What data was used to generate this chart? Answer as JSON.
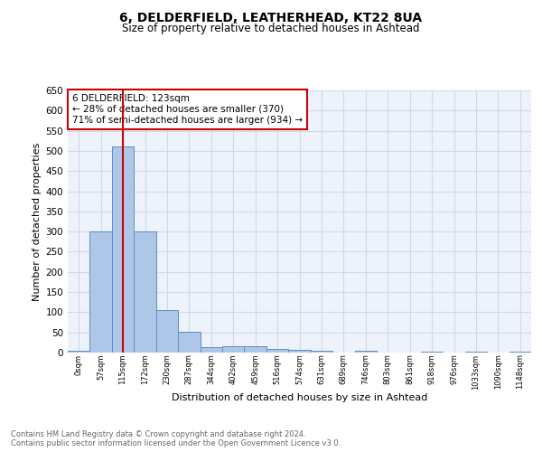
{
  "title1": "6, DELDERFIELD, LEATHERHEAD, KT22 8UA",
  "title2": "Size of property relative to detached houses in Ashtead",
  "xlabel": "Distribution of detached houses by size in Ashtead",
  "ylabel": "Number of detached properties",
  "bin_labels": [
    "0sqm",
    "57sqm",
    "115sqm",
    "172sqm",
    "230sqm",
    "287sqm",
    "344sqm",
    "402sqm",
    "459sqm",
    "516sqm",
    "574sqm",
    "631sqm",
    "689sqm",
    "746sqm",
    "803sqm",
    "861sqm",
    "918sqm",
    "976sqm",
    "1033sqm",
    "1090sqm",
    "1148sqm"
  ],
  "bar_heights": [
    5,
    300,
    510,
    300,
    105,
    52,
    13,
    15,
    15,
    10,
    7,
    5,
    0,
    5,
    0,
    0,
    3,
    0,
    3,
    0,
    3
  ],
  "bar_color": "#aec6e8",
  "bar_edge_color": "#5a8fc2",
  "grid_color": "#d0d8e8",
  "background_color": "#eef2fb",
  "vline_x": 2,
  "vline_color": "#cc0000",
  "annotation_text": "6 DELDERFIELD: 123sqm\n← 28% of detached houses are smaller (370)\n71% of semi-detached houses are larger (934) →",
  "annotation_box_color": "#ffffff",
  "annotation_box_edge": "#cc0000",
  "footer_text": "Contains HM Land Registry data © Crown copyright and database right 2024.\nContains public sector information licensed under the Open Government Licence v3.0.",
  "ylim": [
    0,
    650
  ],
  "yticks": [
    0,
    50,
    100,
    150,
    200,
    250,
    300,
    350,
    400,
    450,
    500,
    550,
    600,
    650
  ]
}
